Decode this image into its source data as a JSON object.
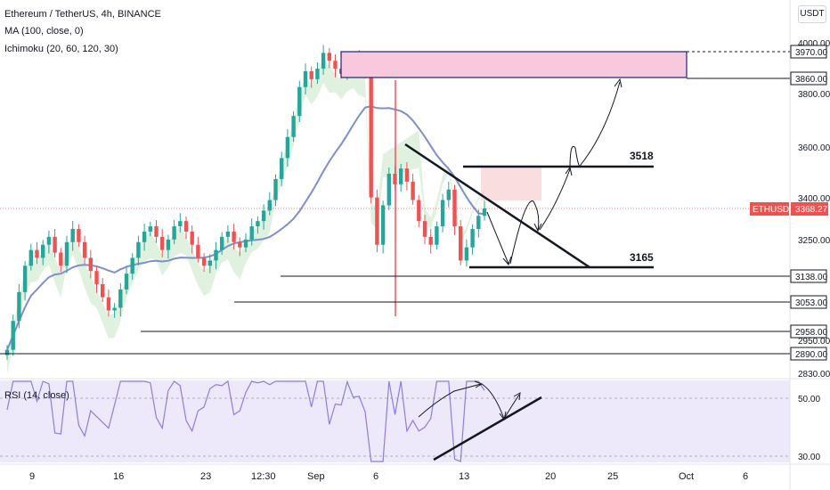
{
  "header": {
    "title": "Ethereum / TetherUS, 4h, BINANCE",
    "indicator_ma": "MA (100, close, 0)",
    "indicator_ichimoku": "Ichimoku (20, 60, 120, 30)",
    "currency_button": "USDT",
    "rsi_label": "RSI (14, close)"
  },
  "colors": {
    "up": "#26a69a",
    "down": "#ef5350",
    "ma": "#7e8fc9",
    "cloud_green": "#a5d6a7",
    "cloud_red": "#f5b5b8",
    "rsi_line": "#8b80d6",
    "rsi_bg": "#ede9fb",
    "zone_fill": "#f8c8dc",
    "zone_stroke": "#1a237e",
    "price_tag": "#ef5350"
  },
  "chart_data": {
    "type": "candlestick",
    "symbol": "ETHUSDT",
    "timeframe": "4h",
    "exchange": "BINANCE",
    "last_price_label": "ETHUSDT",
    "last_price": "3368.27",
    "y_axis_ticks": [
      "4000.00",
      "3800.00",
      "3600.00",
      "3400.00",
      "3250.00",
      "2950.00",
      "2830.00"
    ],
    "price_labels": [
      "3970.00",
      "3860.00",
      "3138.00",
      "3053.00",
      "2958.00",
      "2890.00"
    ],
    "x_axis_ticks": [
      "9",
      "16",
      "23",
      "12:30",
      "Sep",
      "6",
      "13",
      "20",
      "25",
      "Oct",
      "6"
    ],
    "annotations": [
      "3518",
      "3165"
    ],
    "rsi_ticks": [
      "50.00",
      "30.00"
    ],
    "close_series": [
      2830,
      2940,
      3050,
      3150,
      3210,
      3180,
      3230,
      3260,
      3200,
      3150,
      3240,
      3290,
      3240,
      3180,
      3130,
      3080,
      3030,
      2980,
      2990,
      3060,
      3120,
      3180,
      3240,
      3280,
      3300,
      3260,
      3210,
      3250,
      3300,
      3320,
      3280,
      3230,
      3180,
      3150,
      3170,
      3210,
      3260,
      3280,
      3240,
      3220,
      3250,
      3300,
      3320,
      3360,
      3400,
      3480,
      3560,
      3640,
      3720,
      3830,
      3890,
      3860,
      3900,
      3960,
      3930,
      3900,
      3880,
      3920,
      3940,
      3920,
      3880,
      3410,
      3230,
      3380,
      3500,
      3460,
      3520,
      3470,
      3400,
      3320,
      3260,
      3230,
      3300,
      3400,
      3440,
      3300,
      3170,
      3220,
      3290,
      3340,
      3368
    ]
  }
}
